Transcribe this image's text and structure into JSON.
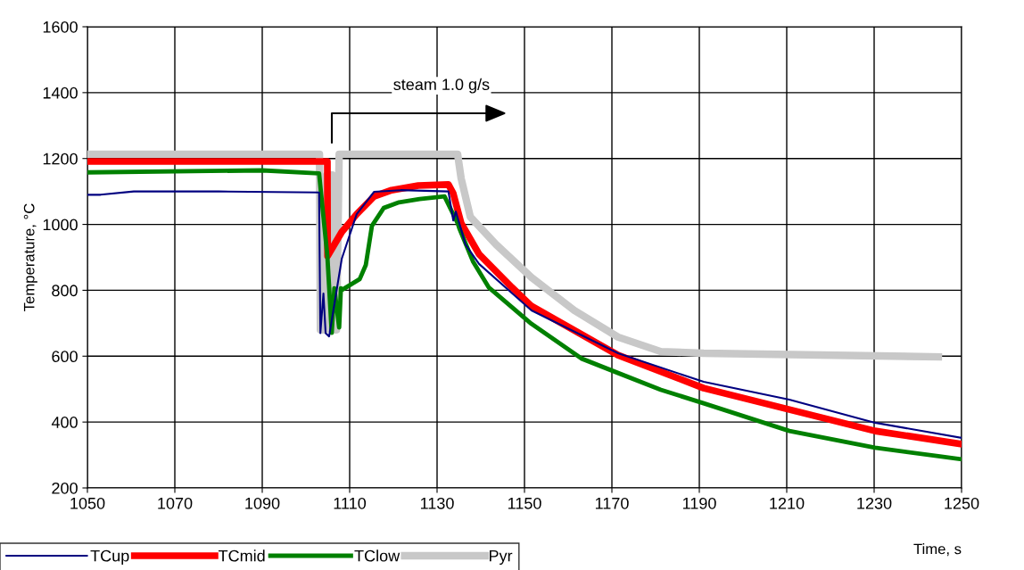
{
  "chart_data": {
    "type": "line",
    "xlabel": "Time, s",
    "ylabel": "Temperature, °C",
    "xlim": [
      1050,
      1250
    ],
    "xticks": [
      1050,
      1070,
      1090,
      1110,
      1130,
      1150,
      1170,
      1190,
      1210,
      1230,
      1250
    ],
    "ylim": [
      200,
      1600
    ],
    "yticks": [
      200,
      400,
      600,
      800,
      1000,
      1200,
      1400,
      1600
    ],
    "grid": true,
    "legend": "bottom left",
    "marker": "none",
    "line_style": "solid",
    "annotations": [
      "steam 1.0 g/s"
    ],
    "series": [
      {
        "name": "TCup",
        "color": "#000080",
        "x": [
          1050,
          1053,
          1060.6,
          1080,
          1103,
          1103.3,
          1104,
          1104.5,
          1105.3,
          1108.2,
          1111.6,
          1115.6,
          1121.7,
          1132.6,
          1133.7,
          1134.3,
          1136.5,
          1139.6,
          1151.6,
          1171.4,
          1191,
          1210.6,
          1230.2,
          1250
        ],
        "values": [
          1090,
          1090,
          1100,
          1100,
          1097,
          670,
          790,
          670,
          660,
          896,
          1031,
          1099,
          1104,
          1100,
          1012,
          1039,
          939,
          880,
          739,
          609,
          522,
          468,
          398,
          352
        ]
      },
      {
        "name": "TCmid",
        "color": "#ff0000",
        "x": [
          1050,
          1104.9,
          1104.95,
          1108.2,
          1111.6,
          1115.6,
          1119.6,
          1125.7,
          1132.6,
          1133.7,
          1135.5,
          1139.6,
          1147.1,
          1151.6,
          1171.4,
          1191,
          1210.6,
          1230.2,
          1250
        ],
        "values": [
          1191,
          1191,
          904,
          977,
          1031,
          1085,
          1104,
          1118,
          1121,
          1094,
          1004,
          910,
          809,
          752,
          603,
          503,
          438,
          373,
          333
        ]
      },
      {
        "name": "TClow",
        "color": "#008000",
        "x": [
          1050,
          1090,
          1103,
          1104.9,
          1105.9,
          1106.5,
          1107.6,
          1108,
          1108.2,
          1112.3,
          1113.7,
          1115.1,
          1117.8,
          1121.3,
          1126,
          1131.7,
          1134.7,
          1135.1,
          1138.2,
          1141.8,
          1151.6,
          1163,
          1171.4,
          1181.2,
          1191,
          1210.6,
          1230.2,
          1250
        ],
        "values": [
          1158,
          1164,
          1155,
          904,
          671,
          806,
          687,
          806,
          801,
          834,
          877,
          996,
          1050,
          1067,
          1077,
          1085,
          1004,
          988,
          888,
          809,
          698,
          593,
          549,
          498,
          457,
          373,
          322,
          287
        ]
      },
      {
        "name": "Pyr",
        "color": "#c8c8c8",
        "x": [
          1050,
          1103.1,
          1103.3,
          1104.5,
          1104.8,
          1106,
          1106.5,
          1107,
          1107.6,
          1134.7,
          1135.5,
          1137.6,
          1143.5,
          1151.6,
          1161.4,
          1171.4,
          1181.2,
          1191,
          1244.7
        ],
        "values": [
          1213,
          1213,
          680,
          680,
          1150,
          1150,
          680,
          680,
          1213,
          1213,
          1140,
          1023,
          939,
          839,
          739,
          658,
          614,
          609,
          598
        ]
      }
    ]
  }
}
